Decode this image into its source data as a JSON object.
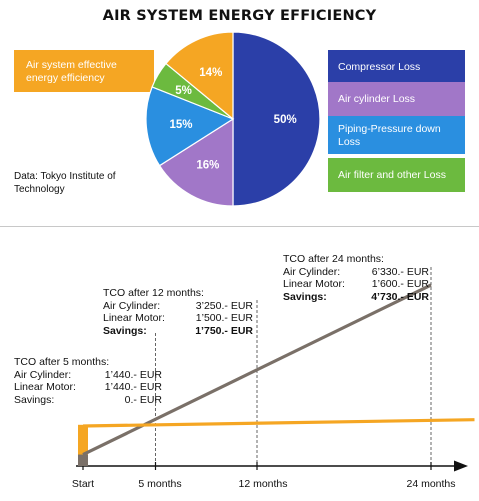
{
  "chart_data": [
    {
      "type": "pie",
      "title": "AIR SYSTEM ENERGY EFFICIENCY",
      "slices": [
        {
          "label": "Compressor Loss",
          "value": 50,
          "display": "50%",
          "color": "#2b3fa8"
        },
        {
          "label": "Air cylinder Loss",
          "value": 16,
          "display": "16%",
          "color": "#a177c8"
        },
        {
          "label": "Piping-Pressure down Loss",
          "value": 15,
          "display": "15%",
          "color": "#2a8fe0"
        },
        {
          "label": "Air filter and other Loss",
          "value": 5,
          "display": "5%",
          "color": "#6cba3f"
        },
        {
          "label": "Air system effective energy efficiency",
          "value": 14,
          "display": "14%",
          "color": "#f5a623"
        }
      ],
      "legend_left": {
        "label": "Air system effective energy efficiency",
        "color": "#f5a623"
      },
      "source": "Data: Tokyo Institute of Technology"
    },
    {
      "type": "line",
      "x_categories": [
        "Start",
        "5 months",
        "12 months",
        "24 months"
      ],
      "x_months": [
        0,
        5,
        12,
        24
      ],
      "xlim": [
        0,
        27
      ],
      "ylim": [
        0,
        7000
      ],
      "series": [
        {
          "name": "Air Cylinder",
          "color": "#7a7068",
          "points": [
            [
              0,
              400
            ],
            [
              24,
              6330
            ]
          ]
        },
        {
          "name": "Linear Motor",
          "color": "#f5a623",
          "points": [
            [
              0,
              1400
            ],
            [
              27,
              1620
            ]
          ]
        }
      ],
      "start_bar": {
        "color": "#f5a623",
        "value": 1440
      },
      "annotations": [
        {
          "title": "TCO after 5 months:",
          "rows": [
            {
              "label": "Air Cylinder:",
              "value": "1’440.- EUR",
              "bold": false
            },
            {
              "label": "Linear Motor:",
              "value": "1’440.- EUR",
              "bold": false
            },
            {
              "label": "Savings:",
              "value": "0.- EUR",
              "bold": false
            }
          ]
        },
        {
          "title": "TCO after 12 months:",
          "rows": [
            {
              "label": "Air Cylinder:",
              "value": "3’250.- EUR",
              "bold": false
            },
            {
              "label": "Linear Motor:",
              "value": "1’500.- EUR",
              "bold": false
            },
            {
              "label": "Savings:",
              "value": "1’750.- EUR",
              "bold": true
            }
          ]
        },
        {
          "title": "TCO after 24 months:",
          "rows": [
            {
              "label": "Air Cylinder:",
              "value": "6’330.- EUR",
              "bold": false
            },
            {
              "label": "Linear Motor:",
              "value": "1’600.- EUR",
              "bold": false
            },
            {
              "label": "Savings:",
              "value": "4’730.- EUR",
              "bold": true
            }
          ]
        }
      ]
    }
  ]
}
